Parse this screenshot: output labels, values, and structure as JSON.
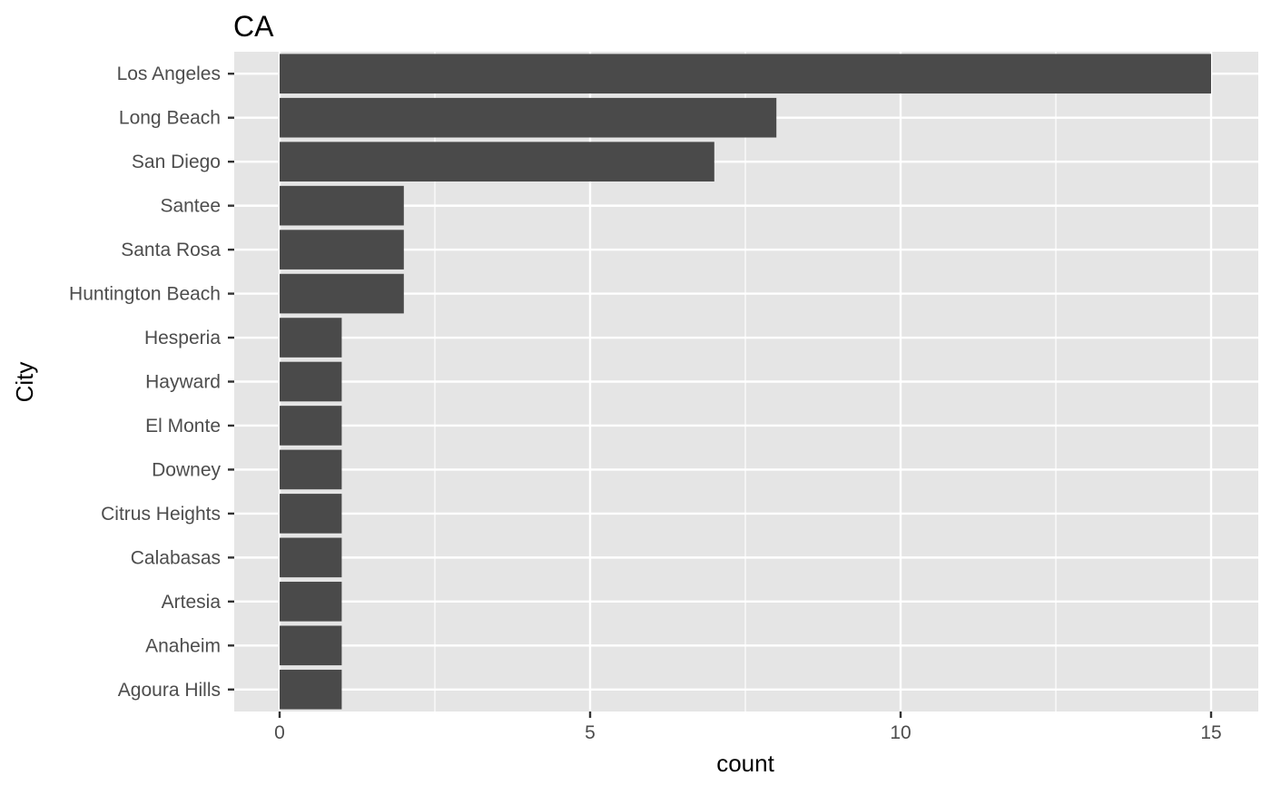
{
  "chart_data": {
    "type": "bar",
    "orientation": "horizontal",
    "title": "CA",
    "xlabel": "count",
    "ylabel": "City",
    "categories": [
      "Los Angeles",
      "Long Beach",
      "San Diego",
      "Santee",
      "Santa Rosa",
      "Huntington Beach",
      "Hesperia",
      "Hayward",
      "El Monte",
      "Downey",
      "Citrus Heights",
      "Calabasas",
      "Artesia",
      "Anaheim",
      "Agoura Hills"
    ],
    "values": [
      15,
      8,
      7,
      2,
      2,
      2,
      1,
      1,
      1,
      1,
      1,
      1,
      1,
      1,
      1
    ],
    "xlim": [
      -0.75,
      15.75
    ],
    "xticks": [
      0,
      5,
      10,
      15
    ],
    "grid": true,
    "colors": {
      "panel": "#e5e5e5",
      "grid": "#ffffff",
      "bar": "#4a4a4a",
      "tick_text": "#4d4d4d",
      "tick_mark": "#333333"
    }
  }
}
